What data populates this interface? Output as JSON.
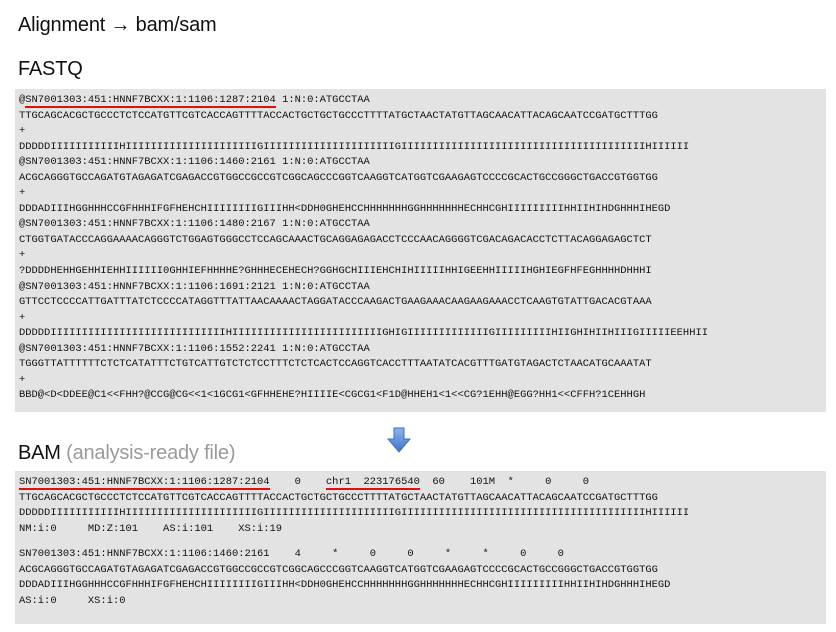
{
  "title": "Alignment → bam/sam",
  "fastq": {
    "label": "FASTQ",
    "lines": [
      {
        "pre": "@",
        "ul": "SN7001303:451:HNNF7BCXX:1:1106:1287:2104",
        "post": " 1:N:0:ATGCCTAA"
      },
      {
        "pre": "TTGCAGCACGCTGCCCTCTCCATGTTCGTCACCAGTTTTACCACTGCTGCTGCCCTTTTATGCTAACTATGTTAGCAACATTACAGCAATCCGATGCTTTGG"
      },
      {
        "pre": "+"
      },
      {
        "pre": "DDDDDIIIIIIIIIIIHIIIIIIIIIIIIIIIIIIIIIGIIIIIIIIIIIIIIIIIIIIIGIIIIIIIIIIIIIIIIIIIIIIIIIIIIIIIIIIIIIIIHIIIIII"
      },
      {
        "pre": "@SN7001303:451:HNNF7BCXX:1:1106:1460:2161 1:N:0:ATGCCTAA"
      },
      {
        "pre": "ACGCAGGGTGCCAGATGTAGAGATCGAGACCGTGGCCGCCGTCGGCAGCCCGGTCAAGGTCATGGTCGAAGAGTCCCCGCACTGCCGGGCTGACCGTGGTGG"
      },
      {
        "pre": "+"
      },
      {
        "pre": "DDDADIIIHGGHHHCCGFHHHIFGFHEHCHIIIIIIIIGIIIHH<DDH0GHEHCCHHHHHHHGGHHHHHHHECHHCGHIIIIIIIIIHHIIHIHDGHHHIHEGD"
      },
      {
        "pre": "@SN7001303:451:HNNF7BCXX:1:1106:1480:2167 1:N:0:ATGCCTAA"
      },
      {
        "pre": "CTGGTGATACCCAGGAAAACAGGGTCTGGAGTGGGCCTCCAGCAAACTGCAGGAGAGACCTCCCAACAGGGGTCGACAGACACCTCTTACAGGAGAGCTCT"
      },
      {
        "pre": "+"
      },
      {
        "pre": "?DDDDHEHHGEHHIEHHIIIIII0GHHIEFHHHHE?GHHHECEHECH?GGHGCHIIIEHCHIHIIIIIHHIGEEHHIIIIIHGHIEGFHFEGHHHHDHHHI"
      },
      {
        "pre": "@SN7001303:451:HNNF7BCXX:1:1106:1691:2121 1:N:0:ATGCCTAA"
      },
      {
        "pre": "GTTCCTCCCCATTGATTTATCTCCCCATAGGTTTATTAACAAAACTAGGATACCCAAGACTGAAGAAACAAGAAGAAACCTCAAGTGTATTGACACGTAAA"
      },
      {
        "pre": "+"
      },
      {
        "pre": "DDDDDIIIIIIIIIIIIIIIIIIIIIIIIIIIIHIIIIIIIIIIIIIIIIIIIIIIIIGHIGIIIIIIIIIIIIIGIIIIIIIIIHIIGHIHIIHIIIGIIIIIEEHHII"
      },
      {
        "pre": "@SN7001303:451:HNNF7BCXX:1:1106:1552:2241 1:N:0:ATGCCTAA"
      },
      {
        "pre": "TGGGTTATTTTTTCTCTCATATTTCTGTCATTGTCTCTCCTTTCTCTCACTCCAGGTCACCTTTAATATCACGTTTGATGTAGACTCTAACATGCAAATAT"
      },
      {
        "pre": "+"
      },
      {
        "pre": "BBD@<D<DDEE@C1<<FHH?@CCG@CG<<1<1GCG1<GFHHEHE?HIIIIE<CGCG1<F1D@HHEH1<1<<CG?1EHH@EGG?HH1<<CFFH?1CEHHGH"
      }
    ]
  },
  "bam": {
    "label": "BAM",
    "sublabel": "(analysis-ready file)",
    "record1": [
      {
        "a": "SN7001303:451:HNNF7BCXX:1:1106:1287:2104",
        "b": "    0    ",
        "c": "chr1  223176540",
        "d": "  60    101M  *     0     0"
      },
      {
        "a": "TTGCAGCACGCTGCCCTCTCCATGTTCGTCACCAGTTTTACCACTGCTGCTGCCCTTTTATGCTAACTATGTTAGCAACATTACAGCAATCCGATGCTTTGG"
      },
      {
        "a": "DDDDDIIIIIIIIIIIHIIIIIIIIIIIIIIIIIIIIIGIIIIIIIIIIIIIIIIIIIIIGIIIIIIIIIIIIIIIIIIIIIIIIIIIIIIIIIIIIIIIHIIIIII"
      },
      {
        "a": "NM:i:0     MD:Z:101    AS:i:101    XS:i:19"
      }
    ],
    "record2": [
      {
        "a": "SN7001303:451:HNNF7BCXX:1:1106:1460:2161    4     *     0     0     *     *     0     0"
      },
      {
        "a": "ACGCAGGGTGCCAGATGTAGAGATCGAGACCGTGGCCGCCGTCGGCAGCCCGGTCAAGGTCATGGTCGAAGAGTCCCCGCACTGCCGGGCTGACCGTGGTGG"
      },
      {
        "a": "DDDADIIIHGGHHHCCGFHHHIFGFHEHCHIIIIIIIIGIIIHH<DDH0GHEHCCHHHHHHHGGHHHHHHHECHHCGHIIIIIIIIIHHIIHIHDGHHHIHEGD"
      },
      {
        "a": "AS:i:0     XS:i:0"
      }
    ]
  },
  "arrow_icon": "down-arrow-icon",
  "colors": {
    "panel": "#e3e3e3",
    "underline": "#e01010",
    "arrow": "#4f86d6"
  }
}
